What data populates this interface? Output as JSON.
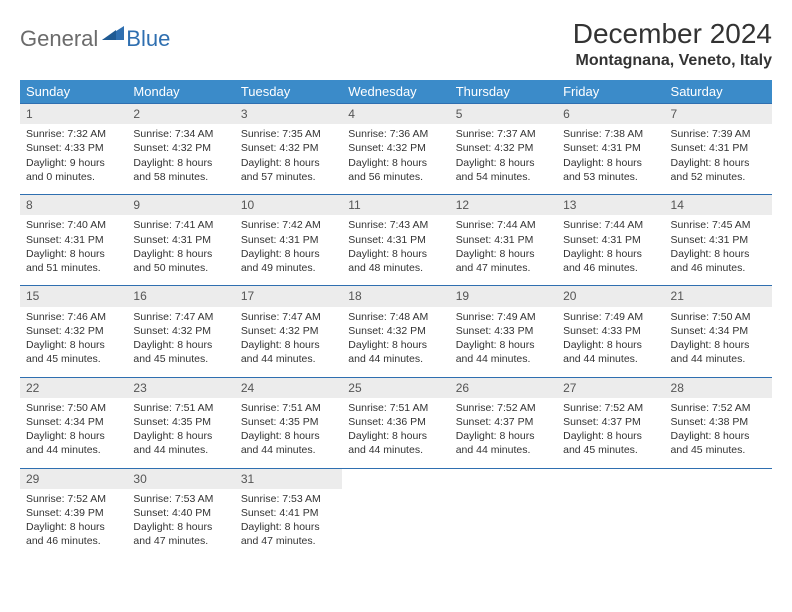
{
  "logo": {
    "word1": "General",
    "word2": "Blue"
  },
  "title": "December 2024",
  "location": "Montagnana, Veneto, Italy",
  "colors": {
    "header_bg": "#3b8bc9",
    "header_text": "#ffffff",
    "rule": "#2f6fb0",
    "daystrip": "#ececec",
    "logo_gray": "#6b6b6b",
    "logo_blue": "#2f6fb0"
  },
  "weekdays": [
    "Sunday",
    "Monday",
    "Tuesday",
    "Wednesday",
    "Thursday",
    "Friday",
    "Saturday"
  ],
  "days": [
    {
      "n": "1",
      "sr": "7:32 AM",
      "ss": "4:33 PM",
      "dl": "9 hours and 0 minutes."
    },
    {
      "n": "2",
      "sr": "7:34 AM",
      "ss": "4:32 PM",
      "dl": "8 hours and 58 minutes."
    },
    {
      "n": "3",
      "sr": "7:35 AM",
      "ss": "4:32 PM",
      "dl": "8 hours and 57 minutes."
    },
    {
      "n": "4",
      "sr": "7:36 AM",
      "ss": "4:32 PM",
      "dl": "8 hours and 56 minutes."
    },
    {
      "n": "5",
      "sr": "7:37 AM",
      "ss": "4:32 PM",
      "dl": "8 hours and 54 minutes."
    },
    {
      "n": "6",
      "sr": "7:38 AM",
      "ss": "4:31 PM",
      "dl": "8 hours and 53 minutes."
    },
    {
      "n": "7",
      "sr": "7:39 AM",
      "ss": "4:31 PM",
      "dl": "8 hours and 52 minutes."
    },
    {
      "n": "8",
      "sr": "7:40 AM",
      "ss": "4:31 PM",
      "dl": "8 hours and 51 minutes."
    },
    {
      "n": "9",
      "sr": "7:41 AM",
      "ss": "4:31 PM",
      "dl": "8 hours and 50 minutes."
    },
    {
      "n": "10",
      "sr": "7:42 AM",
      "ss": "4:31 PM",
      "dl": "8 hours and 49 minutes."
    },
    {
      "n": "11",
      "sr": "7:43 AM",
      "ss": "4:31 PM",
      "dl": "8 hours and 48 minutes."
    },
    {
      "n": "12",
      "sr": "7:44 AM",
      "ss": "4:31 PM",
      "dl": "8 hours and 47 minutes."
    },
    {
      "n": "13",
      "sr": "7:44 AM",
      "ss": "4:31 PM",
      "dl": "8 hours and 46 minutes."
    },
    {
      "n": "14",
      "sr": "7:45 AM",
      "ss": "4:31 PM",
      "dl": "8 hours and 46 minutes."
    },
    {
      "n": "15",
      "sr": "7:46 AM",
      "ss": "4:32 PM",
      "dl": "8 hours and 45 minutes."
    },
    {
      "n": "16",
      "sr": "7:47 AM",
      "ss": "4:32 PM",
      "dl": "8 hours and 45 minutes."
    },
    {
      "n": "17",
      "sr": "7:47 AM",
      "ss": "4:32 PM",
      "dl": "8 hours and 44 minutes."
    },
    {
      "n": "18",
      "sr": "7:48 AM",
      "ss": "4:32 PM",
      "dl": "8 hours and 44 minutes."
    },
    {
      "n": "19",
      "sr": "7:49 AM",
      "ss": "4:33 PM",
      "dl": "8 hours and 44 minutes."
    },
    {
      "n": "20",
      "sr": "7:49 AM",
      "ss": "4:33 PM",
      "dl": "8 hours and 44 minutes."
    },
    {
      "n": "21",
      "sr": "7:50 AM",
      "ss": "4:34 PM",
      "dl": "8 hours and 44 minutes."
    },
    {
      "n": "22",
      "sr": "7:50 AM",
      "ss": "4:34 PM",
      "dl": "8 hours and 44 minutes."
    },
    {
      "n": "23",
      "sr": "7:51 AM",
      "ss": "4:35 PM",
      "dl": "8 hours and 44 minutes."
    },
    {
      "n": "24",
      "sr": "7:51 AM",
      "ss": "4:35 PM",
      "dl": "8 hours and 44 minutes."
    },
    {
      "n": "25",
      "sr": "7:51 AM",
      "ss": "4:36 PM",
      "dl": "8 hours and 44 minutes."
    },
    {
      "n": "26",
      "sr": "7:52 AM",
      "ss": "4:37 PM",
      "dl": "8 hours and 44 minutes."
    },
    {
      "n": "27",
      "sr": "7:52 AM",
      "ss": "4:37 PM",
      "dl": "8 hours and 45 minutes."
    },
    {
      "n": "28",
      "sr": "7:52 AM",
      "ss": "4:38 PM",
      "dl": "8 hours and 45 minutes."
    },
    {
      "n": "29",
      "sr": "7:52 AM",
      "ss": "4:39 PM",
      "dl": "8 hours and 46 minutes."
    },
    {
      "n": "30",
      "sr": "7:53 AM",
      "ss": "4:40 PM",
      "dl": "8 hours and 47 minutes."
    },
    {
      "n": "31",
      "sr": "7:53 AM",
      "ss": "4:41 PM",
      "dl": "8 hours and 47 minutes."
    }
  ],
  "labels": {
    "sunrise": "Sunrise:",
    "sunset": "Sunset:",
    "daylight": "Daylight:"
  }
}
